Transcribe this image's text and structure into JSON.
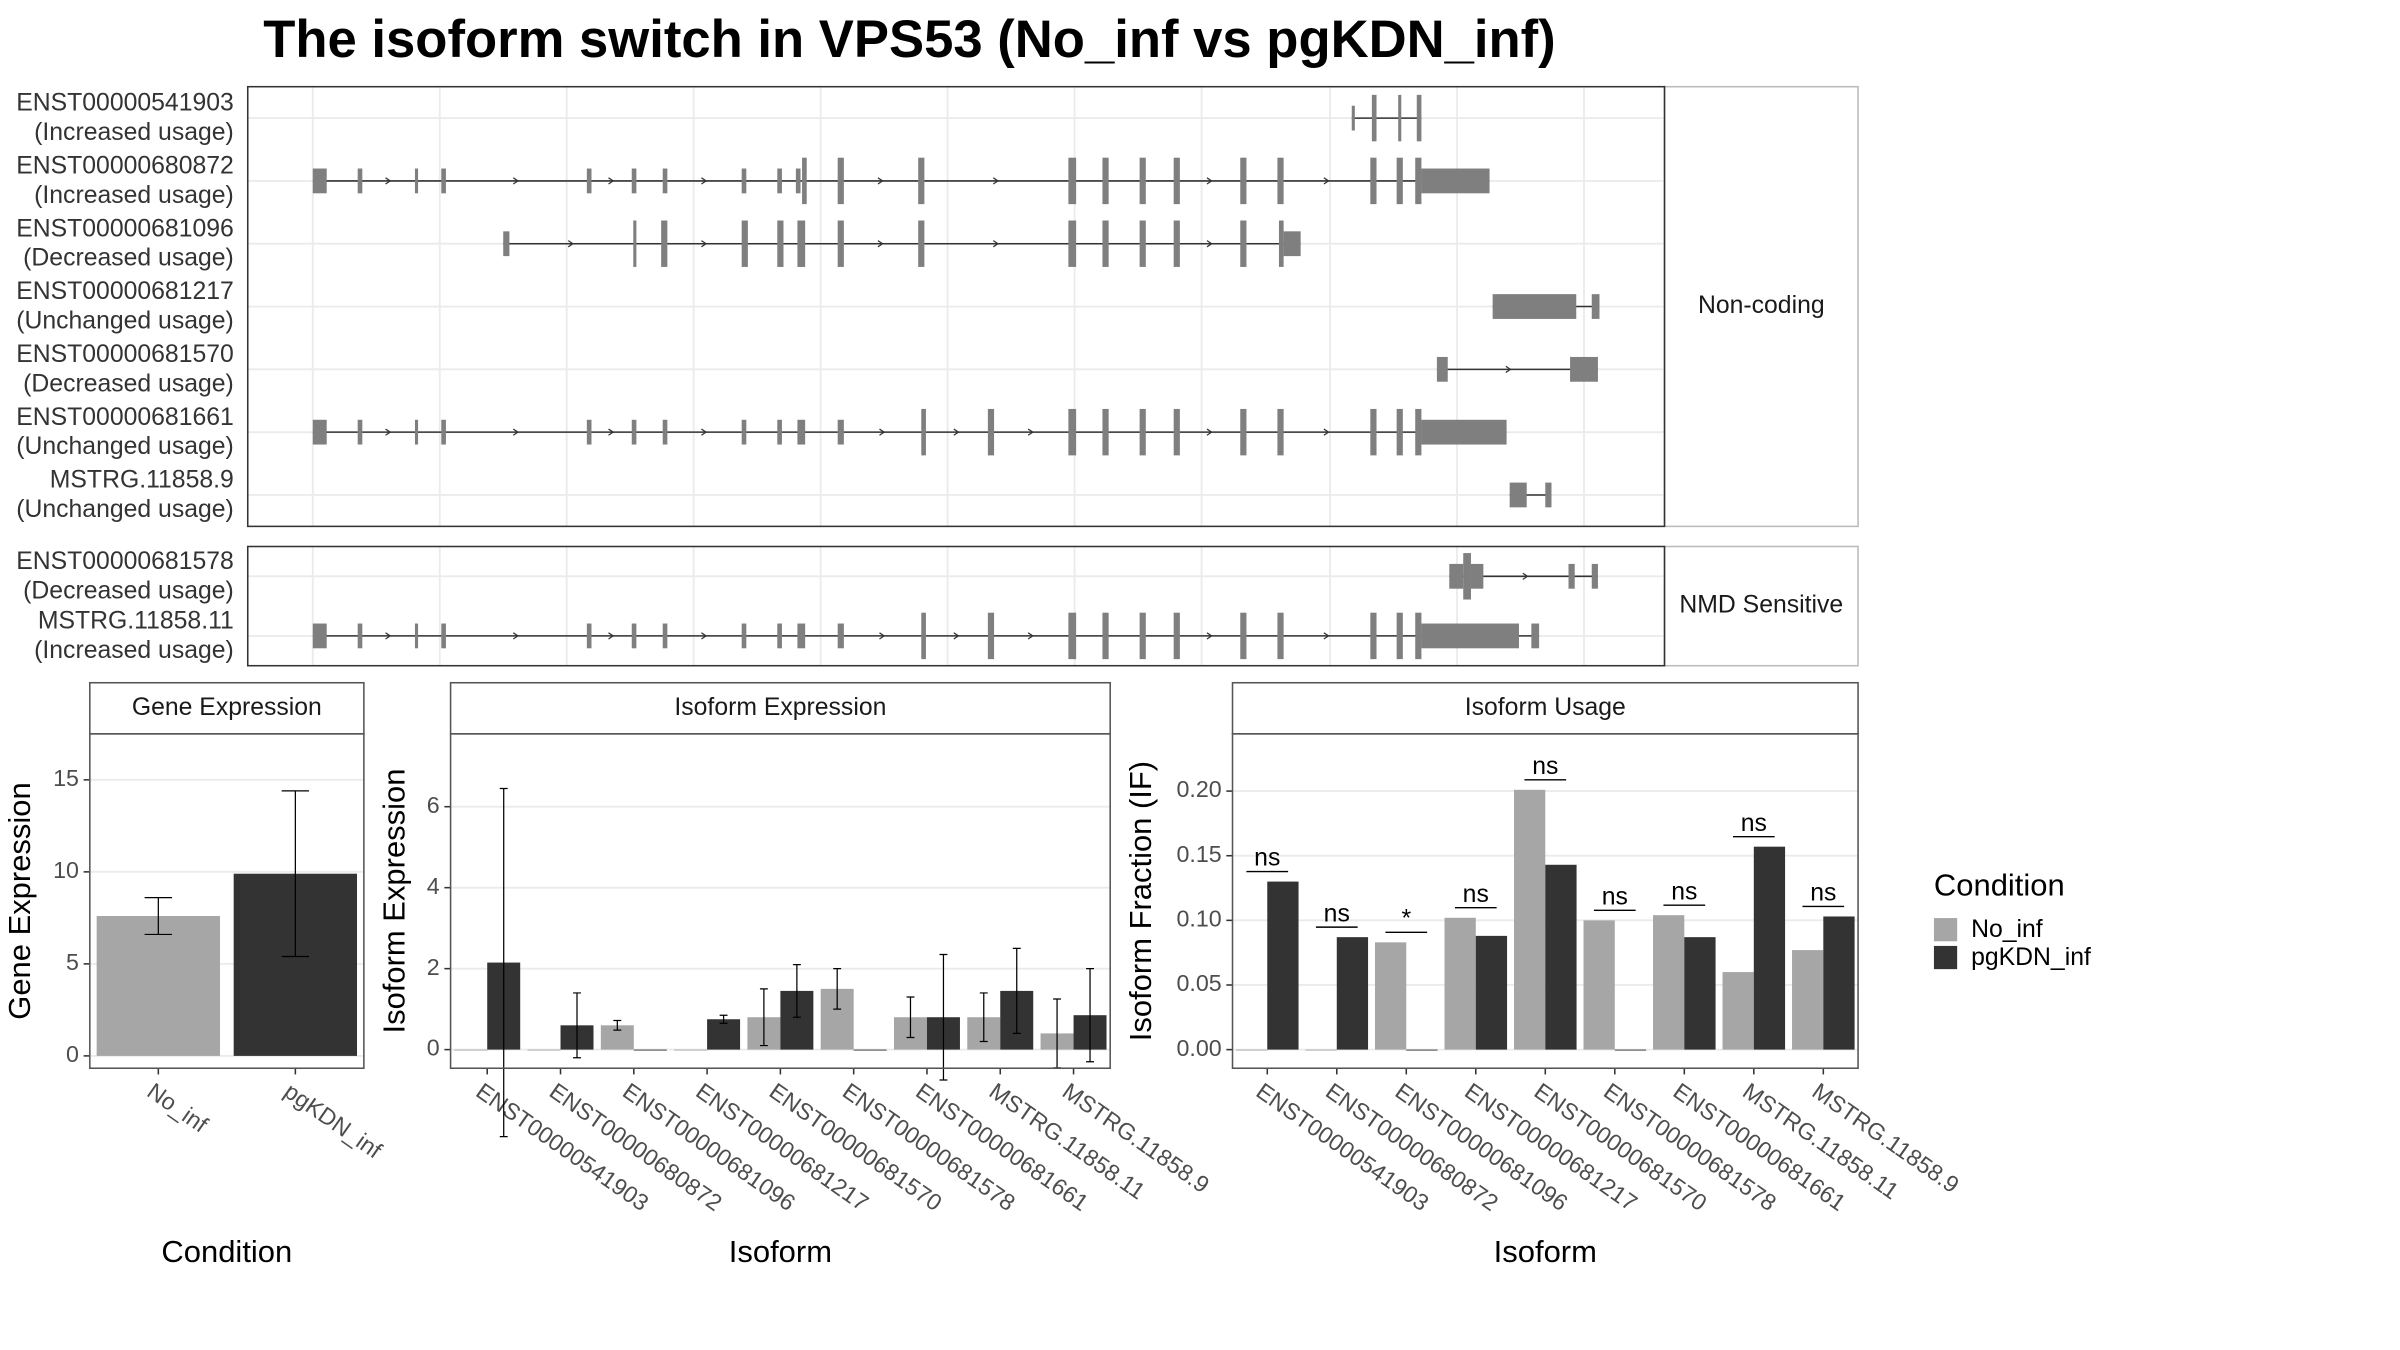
{
  "title": "The isoform switch in VPS53 (No_inf vs pgKDN_inf)",
  "chart_data": [
    {
      "type": "gene_structure",
      "xlim": [
        160,
        1075
      ],
      "xticks": [
        202,
        284,
        366,
        448,
        530,
        612,
        694,
        776,
        859,
        941,
        1023
      ],
      "groups": [
        {
          "name": "Non-coding",
          "transcripts": [
            {
              "id": "ENST00000541903",
              "usage": "(Increased usage)",
              "exons": [
                {
                  "start": 873,
                  "end": 875,
                  "type": "UTR"
                },
                {
                  "start": 886,
                  "end": 889,
                  "type": "CDS"
                },
                {
                  "start": 903,
                  "end": 905,
                  "type": "CDS"
                },
                {
                  "start": 915,
                  "end": 918,
                  "type": "CDS"
                }
              ]
            },
            {
              "id": "ENST00000680872",
              "usage": "(Increased usage)",
              "exons": [
                {
                  "start": 202,
                  "end": 211,
                  "type": "UTR"
                },
                {
                  "start": 231,
                  "end": 234,
                  "type": "UTR"
                },
                {
                  "start": 268,
                  "end": 270,
                  "type": "UTR"
                },
                {
                  "start": 285,
                  "end": 288,
                  "type": "UTR"
                },
                {
                  "start": 379,
                  "end": 382,
                  "type": "UTR"
                },
                {
                  "start": 408,
                  "end": 411,
                  "type": "UTR"
                },
                {
                  "start": 428,
                  "end": 431,
                  "type": "UTR"
                },
                {
                  "start": 479,
                  "end": 482,
                  "type": "UTR"
                },
                {
                  "start": 502,
                  "end": 505,
                  "type": "UTR"
                },
                {
                  "start": 514,
                  "end": 517,
                  "type": "UTR"
                },
                {
                  "start": 518,
                  "end": 521,
                  "type": "CDS"
                },
                {
                  "start": 541,
                  "end": 545,
                  "type": "CDS"
                },
                {
                  "start": 593,
                  "end": 597,
                  "type": "CDS"
                },
                {
                  "start": 690,
                  "end": 695,
                  "type": "CDS"
                },
                {
                  "start": 712,
                  "end": 716,
                  "type": "CDS"
                },
                {
                  "start": 736,
                  "end": 740,
                  "type": "CDS"
                },
                {
                  "start": 758,
                  "end": 762,
                  "type": "CDS"
                },
                {
                  "start": 801,
                  "end": 805,
                  "type": "CDS"
                },
                {
                  "start": 825,
                  "end": 829,
                  "type": "CDS"
                },
                {
                  "start": 885,
                  "end": 889,
                  "type": "CDS"
                },
                {
                  "start": 902,
                  "end": 906,
                  "type": "CDS"
                },
                {
                  "start": 914,
                  "end": 918,
                  "type": "CDS"
                },
                {
                  "start": 918,
                  "end": 962,
                  "type": "UTR"
                }
              ]
            },
            {
              "id": "ENST00000681096",
              "usage": "(Decreased usage)",
              "exons": [
                {
                  "start": 325,
                  "end": 329,
                  "type": "UTR"
                },
                {
                  "start": 409,
                  "end": 411,
                  "type": "CDS"
                },
                {
                  "start": 427,
                  "end": 431,
                  "type": "CDS"
                },
                {
                  "start": 479,
                  "end": 483,
                  "type": "CDS"
                },
                {
                  "start": 502,
                  "end": 506,
                  "type": "CDS"
                },
                {
                  "start": 515,
                  "end": 520,
                  "type": "CDS"
                },
                {
                  "start": 541,
                  "end": 545,
                  "type": "CDS"
                },
                {
                  "start": 593,
                  "end": 597,
                  "type": "CDS"
                },
                {
                  "start": 690,
                  "end": 695,
                  "type": "CDS"
                },
                {
                  "start": 712,
                  "end": 716,
                  "type": "CDS"
                },
                {
                  "start": 736,
                  "end": 740,
                  "type": "CDS"
                },
                {
                  "start": 758,
                  "end": 762,
                  "type": "CDS"
                },
                {
                  "start": 801,
                  "end": 805,
                  "type": "CDS"
                },
                {
                  "start": 826,
                  "end": 829,
                  "type": "CDS"
                },
                {
                  "start": 829,
                  "end": 840,
                  "type": "UTR"
                }
              ]
            },
            {
              "id": "ENST00000681217",
              "usage": "(Unchanged usage)",
              "exons": [
                {
                  "start": 964,
                  "end": 1018,
                  "type": "UTR"
                },
                {
                  "start": 1028,
                  "end": 1033,
                  "type": "UTR"
                }
              ]
            },
            {
              "id": "ENST00000681570",
              "usage": "(Decreased usage)",
              "exons": [
                {
                  "start": 928,
                  "end": 935,
                  "type": "UTR"
                },
                {
                  "start": 1014,
                  "end": 1032,
                  "type": "UTR"
                }
              ]
            },
            {
              "id": "ENST00000681661",
              "usage": "(Unchanged usage)",
              "exons": [
                {
                  "start": 202,
                  "end": 211,
                  "type": "UTR"
                },
                {
                  "start": 231,
                  "end": 234,
                  "type": "UTR"
                },
                {
                  "start": 268,
                  "end": 270,
                  "type": "UTR"
                },
                {
                  "start": 285,
                  "end": 288,
                  "type": "UTR"
                },
                {
                  "start": 379,
                  "end": 382,
                  "type": "UTR"
                },
                {
                  "start": 408,
                  "end": 411,
                  "type": "UTR"
                },
                {
                  "start": 428,
                  "end": 431,
                  "type": "UTR"
                },
                {
                  "start": 479,
                  "end": 482,
                  "type": "UTR"
                },
                {
                  "start": 502,
                  "end": 505,
                  "type": "UTR"
                },
                {
                  "start": 515,
                  "end": 520,
                  "type": "UTR"
                },
                {
                  "start": 541,
                  "end": 545,
                  "type": "UTR"
                },
                {
                  "start": 595,
                  "end": 598,
                  "type": "CDS"
                },
                {
                  "start": 638,
                  "end": 642,
                  "type": "CDS"
                },
                {
                  "start": 690,
                  "end": 695,
                  "type": "CDS"
                },
                {
                  "start": 712,
                  "end": 716,
                  "type": "CDS"
                },
                {
                  "start": 736,
                  "end": 740,
                  "type": "CDS"
                },
                {
                  "start": 758,
                  "end": 762,
                  "type": "CDS"
                },
                {
                  "start": 801,
                  "end": 805,
                  "type": "CDS"
                },
                {
                  "start": 825,
                  "end": 829,
                  "type": "CDS"
                },
                {
                  "start": 885,
                  "end": 889,
                  "type": "CDS"
                },
                {
                  "start": 902,
                  "end": 906,
                  "type": "CDS"
                },
                {
                  "start": 914,
                  "end": 918,
                  "type": "CDS"
                },
                {
                  "start": 918,
                  "end": 973,
                  "type": "UTR"
                }
              ]
            },
            {
              "id": "MSTRG.11858.9",
              "usage": "(Unchanged usage)",
              "exons": [
                {
                  "start": 975,
                  "end": 986,
                  "type": "UTR"
                },
                {
                  "start": 998,
                  "end": 1002,
                  "type": "UTR"
                }
              ]
            }
          ]
        },
        {
          "name": "NMD Sensitive",
          "transcripts": [
            {
              "id": "ENST00000681578",
              "usage": "(Decreased usage)",
              "exons": [
                {
                  "start": 936,
                  "end": 945,
                  "type": "UTR"
                },
                {
                  "start": 945,
                  "end": 950,
                  "type": "CDS"
                },
                {
                  "start": 950,
                  "end": 958,
                  "type": "UTR"
                },
                {
                  "start": 1013,
                  "end": 1017,
                  "type": "UTR"
                },
                {
                  "start": 1028,
                  "end": 1032,
                  "type": "UTR"
                }
              ]
            },
            {
              "id": "MSTRG.11858.11",
              "usage": "(Increased usage)",
              "exons": [
                {
                  "start": 202,
                  "end": 211,
                  "type": "UTR"
                },
                {
                  "start": 231,
                  "end": 234,
                  "type": "UTR"
                },
                {
                  "start": 268,
                  "end": 270,
                  "type": "UTR"
                },
                {
                  "start": 285,
                  "end": 288,
                  "type": "UTR"
                },
                {
                  "start": 379,
                  "end": 382,
                  "type": "UTR"
                },
                {
                  "start": 408,
                  "end": 411,
                  "type": "UTR"
                },
                {
                  "start": 428,
                  "end": 431,
                  "type": "UTR"
                },
                {
                  "start": 479,
                  "end": 482,
                  "type": "UTR"
                },
                {
                  "start": 502,
                  "end": 505,
                  "type": "UTR"
                },
                {
                  "start": 515,
                  "end": 520,
                  "type": "UTR"
                },
                {
                  "start": 541,
                  "end": 545,
                  "type": "UTR"
                },
                {
                  "start": 595,
                  "end": 598,
                  "type": "CDS"
                },
                {
                  "start": 638,
                  "end": 642,
                  "type": "CDS"
                },
                {
                  "start": 690,
                  "end": 695,
                  "type": "CDS"
                },
                {
                  "start": 712,
                  "end": 716,
                  "type": "CDS"
                },
                {
                  "start": 736,
                  "end": 740,
                  "type": "CDS"
                },
                {
                  "start": 758,
                  "end": 762,
                  "type": "CDS"
                },
                {
                  "start": 801,
                  "end": 805,
                  "type": "CDS"
                },
                {
                  "start": 825,
                  "end": 829,
                  "type": "CDS"
                },
                {
                  "start": 885,
                  "end": 889,
                  "type": "CDS"
                },
                {
                  "start": 902,
                  "end": 906,
                  "type": "CDS"
                },
                {
                  "start": 914,
                  "end": 918,
                  "type": "CDS"
                },
                {
                  "start": 918,
                  "end": 981,
                  "type": "UTR"
                },
                {
                  "start": 989,
                  "end": 994,
                  "type": "UTR"
                }
              ]
            }
          ]
        }
      ]
    },
    {
      "type": "bar",
      "title": "Gene Expression",
      "y_label": "Gene Expression",
      "x_label": "Condition",
      "categories": [
        "No_inf",
        "pgKDN_inf"
      ],
      "values": [
        7.6,
        9.9
      ],
      "errors": [
        1.0,
        4.5
      ],
      "colors": [
        "#a6a6a6",
        "#333333"
      ],
      "ylim": [
        -0.67,
        17.5
      ],
      "yticks": [
        0,
        5,
        10,
        15
      ],
      "grid": true
    },
    {
      "type": "grouped_bar",
      "title": "Isoform Expression",
      "y_label": "Isoform Expression",
      "x_label": "Isoform",
      "categories": [
        "ENST00000541903",
        "ENST00000680872",
        "ENST00000681096",
        "ENST00000681217",
        "ENST00000681570",
        "ENST00000681578",
        "ENST00000681661",
        "MSTRG.11858.11",
        "MSTRG.11858.9"
      ],
      "series": [
        {
          "name": "No_inf",
          "color": "#a6a6a6",
          "values": [
            0,
            0,
            0.6,
            0,
            0.8,
            1.5,
            0.8,
            0.8,
            0.4
          ],
          "errors": [
            0,
            0,
            0.12,
            0,
            0.7,
            0.5,
            0.5,
            0.6,
            0.85
          ]
        },
        {
          "name": "pgKDN_inf",
          "color": "#333333",
          "values": [
            2.15,
            0.6,
            0,
            0.75,
            1.45,
            0,
            0.8,
            1.45,
            0.85
          ],
          "errors": [
            4.3,
            0.8,
            0,
            0.1,
            0.65,
            0,
            1.55,
            1.05,
            1.15
          ]
        }
      ],
      "ylim": [
        -0.46,
        7.8
      ],
      "yticks": [
        0,
        2,
        4,
        6
      ],
      "grid": true
    },
    {
      "type": "grouped_bar",
      "title": "Isoform Usage",
      "y_label": "Isoform Fraction (IF)",
      "x_label": "Isoform",
      "categories": [
        "ENST00000541903",
        "ENST00000680872",
        "ENST00000681096",
        "ENST00000681217",
        "ENST00000681570",
        "ENST00000681578",
        "ENST00000681661",
        "MSTRG.11858.11",
        "MSTRG.11858.9"
      ],
      "series": [
        {
          "name": "No_inf",
          "color": "#a6a6a6",
          "values": [
            0,
            0,
            0.083,
            0.102,
            0.201,
            0.1,
            0.104,
            0.06,
            0.077
          ]
        },
        {
          "name": "pgKDN_inf",
          "color": "#333333",
          "values": [
            0.13,
            0.087,
            0,
            0.088,
            0.143,
            0,
            0.087,
            0.157,
            0.103
          ]
        }
      ],
      "significance": [
        "ns",
        "ns",
        "*",
        "ns",
        "ns",
        "ns",
        "ns",
        "ns",
        "ns"
      ],
      "ylim": [
        -0.0144,
        0.2443
      ],
      "yticks": [
        {
          "value": 0,
          "label": "0.00"
        },
        {
          "value": 0.05,
          "label": "0.05"
        },
        {
          "value": 0.1,
          "label": "0.10"
        },
        {
          "value": 0.15,
          "label": "0.15"
        },
        {
          "value": 0.2,
          "label": "0.20"
        }
      ],
      "grid": true,
      "legend_title": "Condition",
      "legend": "right"
    }
  ]
}
